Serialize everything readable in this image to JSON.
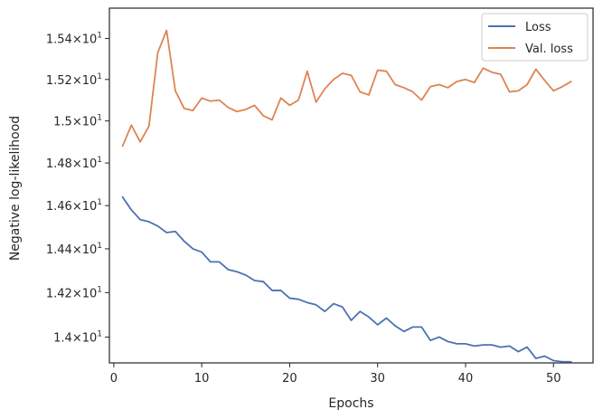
{
  "chart_data": {
    "type": "line",
    "xlabel": "Epochs",
    "ylabel": "Negative log-likelihood",
    "xlim": [
      -0.5,
      54.5
    ],
    "ylim": [
      13.885,
      15.55
    ],
    "y_scale": "log",
    "grid": false,
    "legend_position": "top-right",
    "x_ticks": [
      0,
      10,
      20,
      30,
      40,
      50
    ],
    "x_tick_labels": [
      "0",
      "10",
      "20",
      "30",
      "40",
      "50"
    ],
    "y_ticks": [
      14.0,
      14.2,
      14.4,
      14.6,
      14.8,
      15.0,
      15.2,
      15.4
    ],
    "y_tick_labels": [
      {
        "mant": "1.4",
        "exp": "1"
      },
      {
        "mant": "1.42",
        "exp": "1"
      },
      {
        "mant": "1.44",
        "exp": "1"
      },
      {
        "mant": "1.46",
        "exp": "1"
      },
      {
        "mant": "1.48",
        "exp": "1"
      },
      {
        "mant": "1.5",
        "exp": "1"
      },
      {
        "mant": "1.52",
        "exp": "1"
      },
      {
        "mant": "1.54",
        "exp": "1"
      }
    ],
    "x": [
      1,
      2,
      3,
      4,
      5,
      6,
      7,
      8,
      9,
      10,
      11,
      12,
      13,
      14,
      15,
      16,
      17,
      18,
      19,
      20,
      21,
      22,
      23,
      24,
      25,
      26,
      27,
      28,
      29,
      30,
      31,
      32,
      33,
      34,
      35,
      36,
      37,
      38,
      39,
      40,
      41,
      42,
      43,
      44,
      45,
      46,
      47,
      48,
      49,
      50,
      51,
      52
    ],
    "series": [
      {
        "name": "Loss",
        "color": "#4c72b0",
        "values": [
          14.64,
          14.58,
          14.535,
          14.525,
          14.505,
          14.475,
          14.48,
          14.435,
          14.4,
          14.385,
          14.34,
          14.34,
          14.305,
          14.295,
          14.28,
          14.255,
          14.25,
          14.21,
          14.21,
          14.175,
          14.17,
          14.155,
          14.145,
          14.115,
          14.15,
          14.135,
          14.075,
          14.115,
          14.09,
          14.055,
          14.085,
          14.05,
          14.025,
          14.045,
          14.045,
          13.985,
          14.0,
          13.98,
          13.97,
          13.97,
          13.96,
          13.965,
          13.965,
          13.955,
          13.96,
          13.935,
          13.955,
          13.905,
          13.915,
          13.895,
          13.89,
          13.89
        ]
      },
      {
        "name": "Val. loss",
        "color": "#dd8452",
        "values": [
          14.88,
          14.98,
          14.9,
          14.975,
          15.33,
          15.44,
          15.145,
          15.06,
          15.05,
          15.11,
          15.095,
          15.1,
          15.065,
          15.045,
          15.055,
          15.075,
          15.025,
          15.005,
          15.11,
          15.075,
          15.1,
          15.24,
          15.09,
          15.155,
          15.2,
          15.23,
          15.22,
          15.14,
          15.125,
          15.245,
          15.24,
          15.175,
          15.16,
          15.14,
          15.1,
          15.165,
          15.175,
          15.16,
          15.19,
          15.2,
          15.185,
          15.255,
          15.235,
          15.225,
          15.14,
          15.145,
          15.175,
          15.25,
          15.195,
          15.145,
          15.165,
          15.19
        ]
      }
    ]
  }
}
